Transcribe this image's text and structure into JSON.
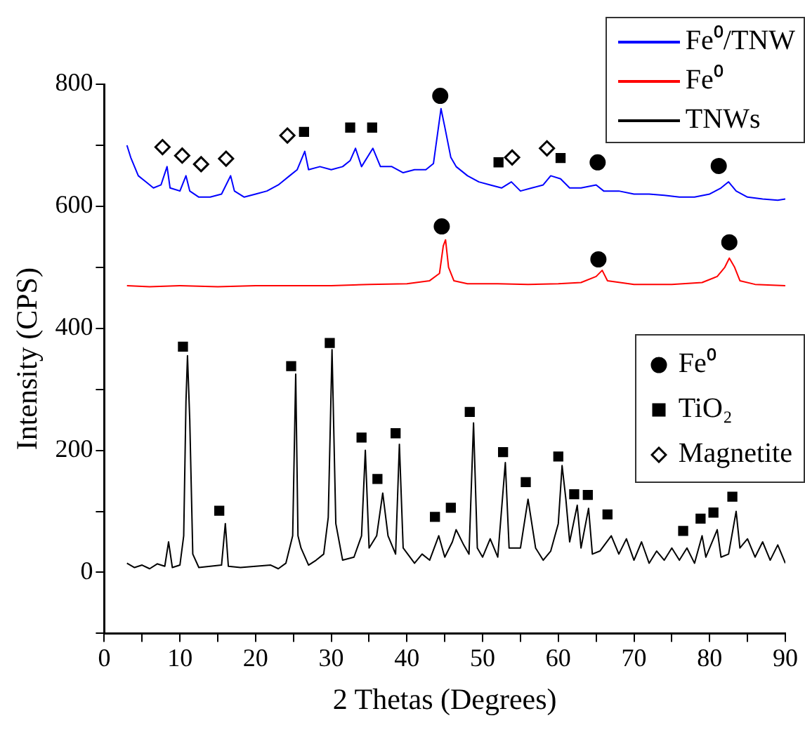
{
  "chart_data": {
    "type": "line",
    "xlabel": "2 Thetas (Degrees)",
    "ylabel": "Intensity (CPS)",
    "xlim": [
      0,
      90
    ],
    "ylim": [
      -100,
      800
    ],
    "xticks": [
      0,
      {
        "value": 5,
        "label": null
      },
      10,
      {
        "value": 15,
        "label": null
      },
      20,
      {
        "value": 25,
        "label": null
      },
      30,
      {
        "value": 35,
        "label": null
      },
      40,
      {
        "value": 45,
        "label": null
      },
      50,
      {
        "value": 55,
        "label": null
      },
      60,
      {
        "value": 65,
        "label": null
      },
      70,
      {
        "value": 75,
        "label": null
      },
      80,
      {
        "value": 85,
        "label": null
      },
      90
    ],
    "yticks": [
      {
        "value": -100,
        "label": null
      },
      0,
      {
        "value": 100,
        "label": null
      },
      200,
      {
        "value": 300,
        "label": null
      },
      400,
      {
        "value": 500,
        "label": null
      },
      600,
      {
        "value": 700,
        "label": null
      },
      800
    ],
    "grid": false,
    "legend": "top right",
    "line_style": "solid",
    "series": [
      {
        "name": "Fe⁰/TNW",
        "marker": "none",
        "color": "#0000ff",
        "x": [
          3,
          3.5,
          4.5,
          5.5,
          6.5,
          7.5,
          8.3,
          8.7,
          10,
          10.8,
          11.3,
          12.5,
          14,
          15.5,
          16.7,
          17.2,
          18.5,
          20,
          21.5,
          23,
          24.5,
          25.5,
          26.5,
          27,
          28.5,
          30,
          31.5,
          32.5,
          33.2,
          34,
          35.5,
          36.5,
          38,
          39.5,
          41,
          42.5,
          43.5,
          44.5,
          45,
          45.8,
          46.5,
          48,
          49.5,
          51,
          52.5,
          53.8,
          55,
          56.5,
          58,
          59,
          60.3,
          61.5,
          63,
          65,
          66,
          68,
          70,
          72,
          74,
          76,
          78,
          80,
          81.5,
          82.5,
          83.5,
          85,
          87,
          89,
          90
        ],
        "values": [
          700,
          680,
          650,
          640,
          630,
          635,
          665,
          630,
          625,
          650,
          625,
          615,
          615,
          620,
          650,
          625,
          615,
          620,
          625,
          635,
          650,
          660,
          690,
          660,
          665,
          660,
          665,
          675,
          695,
          665,
          695,
          665,
          665,
          655,
          660,
          660,
          670,
          760,
          730,
          680,
          665,
          650,
          640,
          635,
          630,
          640,
          625,
          630,
          635,
          650,
          645,
          630,
          630,
          635,
          625,
          625,
          620,
          620,
          618,
          615,
          615,
          620,
          630,
          640,
          625,
          615,
          612,
          610,
          612
        ]
      },
      {
        "name": "Fe⁰",
        "marker": "none",
        "color": "#ff0000",
        "x": [
          3,
          6,
          10,
          15,
          20,
          25,
          30,
          35,
          40,
          43,
          44.3,
          44.8,
          45.1,
          45.5,
          46.2,
          48,
          52,
          56,
          60,
          63,
          65,
          65.8,
          66.5,
          70,
          75,
          79,
          81,
          82,
          82.6,
          83.3,
          84,
          86,
          90
        ],
        "values": [
          470,
          468,
          470,
          468,
          470,
          470,
          470,
          472,
          473,
          478,
          490,
          535,
          545,
          500,
          478,
          473,
          473,
          472,
          473,
          475,
          485,
          495,
          478,
          472,
          472,
          475,
          485,
          500,
          515,
          500,
          478,
          472,
          470
        ]
      },
      {
        "name": "TNWs",
        "marker": "none",
        "color": "#000000",
        "x": [
          3,
          4,
          5,
          6,
          7,
          8,
          8.5,
          9,
          10,
          10.5,
          10.8,
          11,
          11.3,
          11.7,
          12.5,
          14,
          15.5,
          16,
          16.4,
          18,
          20,
          22,
          23,
          24,
          24.9,
          25.3,
          25.6,
          26,
          27,
          28,
          29,
          29.6,
          30.1,
          30.6,
          31.5,
          33,
          34,
          34.5,
          35,
          36,
          36.8,
          37.5,
          38.5,
          39,
          39.5,
          41,
          42,
          43,
          44.2,
          45,
          46,
          46.5,
          47.5,
          48.2,
          48.8,
          49.3,
          50,
          51,
          52,
          53,
          53.5,
          55,
          56,
          57,
          58,
          59,
          60,
          60.5,
          61,
          61.5,
          62.5,
          63,
          64,
          64.5,
          65.5,
          67,
          68,
          69,
          70,
          71,
          72,
          73,
          74,
          75,
          76,
          77,
          78,
          79,
          79.5,
          81,
          81.5,
          82.5,
          83.5,
          84,
          85,
          86,
          87,
          88,
          89,
          90
        ],
        "values": [
          15,
          8,
          12,
          6,
          14,
          10,
          50,
          8,
          12,
          60,
          280,
          355,
          250,
          30,
          8,
          10,
          12,
          80,
          10,
          8,
          10,
          12,
          6,
          15,
          60,
          325,
          60,
          40,
          12,
          20,
          30,
          90,
          365,
          80,
          20,
          25,
          60,
          200,
          40,
          60,
          130,
          60,
          30,
          210,
          40,
          15,
          30,
          20,
          60,
          25,
          50,
          70,
          45,
          30,
          245,
          40,
          25,
          55,
          25,
          180,
          40,
          40,
          120,
          40,
          20,
          35,
          80,
          175,
          120,
          50,
          110,
          40,
          105,
          30,
          35,
          60,
          30,
          55,
          20,
          50,
          15,
          35,
          20,
          40,
          20,
          40,
          15,
          60,
          25,
          70,
          25,
          30,
          100,
          40,
          55,
          25,
          50,
          20,
          45,
          15
        ]
      },
      {
        "name": "Fe⁰",
        "type": "scatter",
        "marker": "circle",
        "color": "#000000",
        "x": [
          44.4,
          44.6,
          65.3,
          82.6,
          65.2,
          81.2
        ],
        "values": [
          781,
          567,
          513,
          541,
          672,
          666
        ]
      },
      {
        "name": "TiO₂",
        "type": "scatter",
        "marker": "square",
        "color": "#000000",
        "x": [
          26.4,
          32.5,
          35.4,
          52.1,
          60.3,
          10.4,
          15.2,
          24.7,
          29.8,
          34,
          36.1,
          38.5,
          43.7,
          45.8,
          48.3,
          52.7,
          55.7,
          60,
          62.1,
          63.9,
          66.5,
          76.5,
          78.8,
          80.5,
          83
        ],
        "values": [
          722,
          729,
          729,
          672,
          679,
          370,
          101,
          338,
          376,
          221,
          153,
          228,
          91,
          106,
          263,
          197,
          148,
          190,
          128,
          127,
          95,
          68,
          88,
          98,
          124
        ]
      },
      {
        "name": "Magnetite",
        "type": "scatter",
        "marker": "diamond",
        "color": "#000000",
        "x": [
          7.7,
          10.3,
          12.8,
          16.1,
          24.2,
          53.9,
          58.5
        ],
        "values": [
          697,
          683,
          669,
          678,
          716,
          680,
          695
        ]
      }
    ]
  }
}
